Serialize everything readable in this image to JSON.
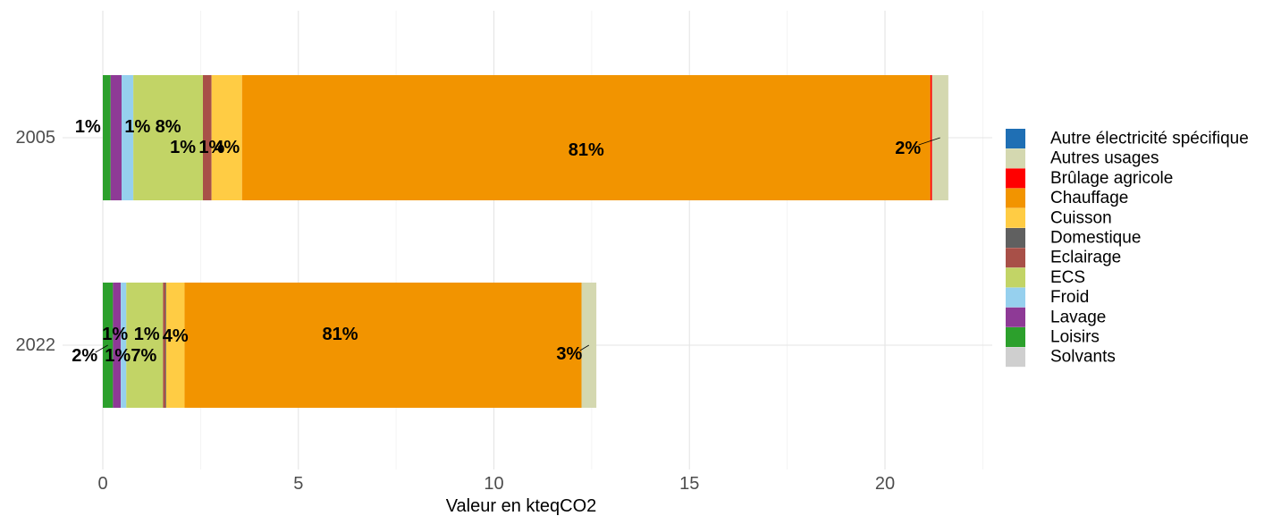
{
  "chart_data": {
    "type": "bar",
    "orientation": "horizontal",
    "stacked": true,
    "title": "",
    "xlabel": "Valeur en kteqCO2",
    "ylabel": "",
    "xlim": [
      0,
      22.6
    ],
    "x_ticks": [
      0,
      5,
      10,
      15,
      20
    ],
    "grid": true,
    "legend_position": "right",
    "categories": [
      "2005",
      "2022"
    ],
    "series": [
      {
        "name": "Autre électricité spécifique",
        "color": "#1f6fb4",
        "values": [
          0,
          0
        ]
      },
      {
        "name": "Autres usages",
        "color": "#d4d8b0",
        "values": [
          0.42,
          0.38
        ]
      },
      {
        "name": "Brûlage agricole",
        "color": "#ff0000",
        "values": [
          0.04,
          0
        ]
      },
      {
        "name": "Chauffage",
        "color": "#f29400",
        "values": [
          17.6,
          10.15
        ]
      },
      {
        "name": "Cuisson",
        "color": "#ffcc44",
        "values": [
          0.78,
          0.47
        ]
      },
      {
        "name": "Domestique",
        "color": "#606060",
        "values": [
          0,
          0.02
        ]
      },
      {
        "name": "Eclairage",
        "color": "#a85048",
        "values": [
          0.22,
          0.06
        ]
      },
      {
        "name": "ECS",
        "color": "#c2d466",
        "values": [
          1.78,
          0.94
        ]
      },
      {
        "name": "Froid",
        "color": "#96d0ee",
        "values": [
          0.3,
          0.14
        ]
      },
      {
        "name": "Lavage",
        "color": "#8e3a96",
        "values": [
          0.28,
          0.2
        ]
      },
      {
        "name": "Loisirs",
        "color": "#2ca02c",
        "values": [
          0.2,
          0.26
        ]
      },
      {
        "name": "Solvants",
        "color": "#cfcfcf",
        "values": [
          0,
          0
        ]
      }
    ],
    "data_labels": [
      {
        "category": "2005",
        "series": "Loisirs",
        "text": "1%"
      },
      {
        "category": "2005",
        "series": "Lavage",
        "text": "1%"
      },
      {
        "category": "2005",
        "series": "Froid",
        "text": "1%"
      },
      {
        "category": "2005",
        "series": "Eclairage",
        "text": "1%"
      },
      {
        "category": "2005",
        "series": "ECS",
        "text": "8%"
      },
      {
        "category": "2005",
        "series": "Cuisson",
        "text": "4%"
      },
      {
        "category": "2005",
        "series": "Chauffage",
        "text": "81%"
      },
      {
        "category": "2005",
        "series": "Autres usages",
        "text": "2%"
      },
      {
        "category": "2022",
        "series": "Loisirs",
        "text": "2%"
      },
      {
        "category": "2022",
        "series": "Lavage",
        "text": "1%"
      },
      {
        "category": "2022",
        "series": "Froid",
        "text": "1%"
      },
      {
        "category": "2022",
        "series": "Eclairage",
        "text": "1%"
      },
      {
        "category": "2022",
        "series": "ECS",
        "text": "7%"
      },
      {
        "category": "2022",
        "series": "Cuisson",
        "text": "4%"
      },
      {
        "category": "2022",
        "series": "Chauffage",
        "text": "81%"
      },
      {
        "category": "2022",
        "series": "Autres usages",
        "text": "3%"
      }
    ]
  }
}
